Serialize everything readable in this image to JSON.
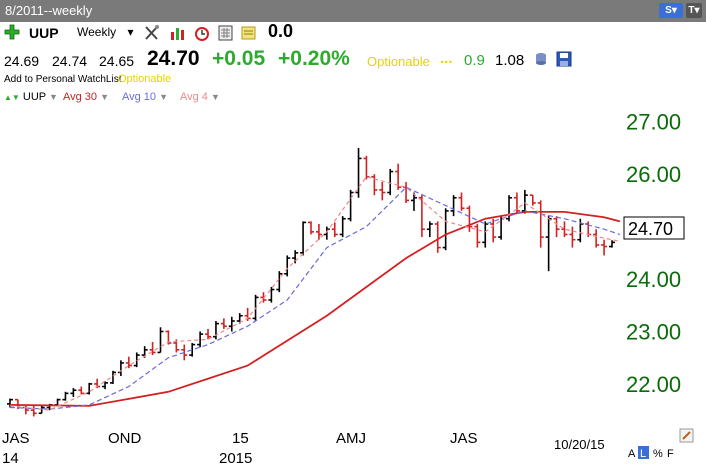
{
  "window": {
    "title": "8/2011--weekly"
  },
  "titlebar_icons": [
    {
      "icon": "s-dropdown-icon",
      "label": "S",
      "color": "#3a6fd8"
    },
    {
      "icon": "t-dropdown-icon",
      "label": "T",
      "color": "#555555"
    }
  ],
  "toolbar": {
    "symbol": "UUP",
    "period": "Weekly",
    "tools": [
      "drawing-tools-icon",
      "indicators-icon",
      "alarm-icon",
      "calculator-icon",
      "notes-icon"
    ],
    "value": "0.0"
  },
  "quote": {
    "open": "24.69",
    "high": "24.74",
    "low": "24.65",
    "last": "24.70",
    "change": "+0.05",
    "change_pct": "+0.20%",
    "optionable": "Optionable",
    "dots": "...",
    "stat1": "0.9",
    "stat2": "1.08"
  },
  "sub": {
    "add_watchlist": "Add to Personal WatchList",
    "optionable": "Optionable"
  },
  "legend": [
    {
      "label": "UUP",
      "color": "#000000"
    },
    {
      "label": "Avg 30",
      "color": "#d42020"
    },
    {
      "label": "Avg 10",
      "color": "#6a6ae0"
    },
    {
      "label": "Avg 4",
      "color": "#ee8888"
    }
  ],
  "colors": {
    "up": "#000000",
    "down": "#d42020",
    "avg30": "#d42020",
    "avg10": "#6a6ae0",
    "avg4": "#ee8888",
    "axis": "#0b6b0b"
  },
  "chart_data": {
    "type": "line",
    "ylim": [
      21.35,
      27.3
    ],
    "yticks": [
      27.0,
      26.0,
      25.0,
      24.0,
      23.0,
      22.0
    ],
    "ytick_labels": [
      "27.00",
      "26.00",
      "25.00",
      "24.00",
      "23.00",
      "22.00"
    ],
    "last_price_label": "24.70",
    "x_labels": [
      "JAS",
      "OND",
      "15",
      "AMJ",
      "JAS"
    ],
    "x_sublabels": [
      "14",
      "2015"
    ],
    "date_label": "10/20/15",
    "bars": [
      [
        21.62,
        21.72,
        21.55,
        21.7
      ],
      [
        21.7,
        21.7,
        21.52,
        21.55
      ],
      [
        21.55,
        21.58,
        21.42,
        21.5
      ],
      [
        21.5,
        21.58,
        21.38,
        21.44
      ],
      [
        21.44,
        21.6,
        21.44,
        21.55
      ],
      [
        21.55,
        21.62,
        21.5,
        21.6
      ],
      [
        21.6,
        21.72,
        21.58,
        21.7
      ],
      [
        21.7,
        21.85,
        21.68,
        21.82
      ],
      [
        21.82,
        21.92,
        21.75,
        21.88
      ],
      [
        21.88,
        21.95,
        21.8,
        21.82
      ],
      [
        21.82,
        22.02,
        21.8,
        22.0
      ],
      [
        22.0,
        22.1,
        21.92,
        21.95
      ],
      [
        21.95,
        22.05,
        21.9,
        22.02
      ],
      [
        22.02,
        22.25,
        22.0,
        22.22
      ],
      [
        22.22,
        22.45,
        22.15,
        22.4
      ],
      [
        22.4,
        22.52,
        22.3,
        22.35
      ],
      [
        22.35,
        22.6,
        22.32,
        22.55
      ],
      [
        22.55,
        22.72,
        22.5,
        22.65
      ],
      [
        22.65,
        22.8,
        22.55,
        22.6
      ],
      [
        22.6,
        23.08,
        22.6,
        23.0
      ],
      [
        23.0,
        23.02,
        22.75,
        22.78
      ],
      [
        22.78,
        22.85,
        22.6,
        22.65
      ],
      [
        22.65,
        22.75,
        22.45,
        22.55
      ],
      [
        22.55,
        22.78,
        22.52,
        22.75
      ],
      [
        22.75,
        23.0,
        22.7,
        22.95
      ],
      [
        22.95,
        23.05,
        22.85,
        22.9
      ],
      [
        22.9,
        23.2,
        22.85,
        23.15
      ],
      [
        23.15,
        23.25,
        23.05,
        23.1
      ],
      [
        23.1,
        23.28,
        23.0,
        23.2
      ],
      [
        23.2,
        23.35,
        23.15,
        23.3
      ],
      [
        23.3,
        23.45,
        23.2,
        23.25
      ],
      [
        23.25,
        23.7,
        23.2,
        23.65
      ],
      [
        23.65,
        23.75,
        23.55,
        23.6
      ],
      [
        23.6,
        23.85,
        23.55,
        23.8
      ],
      [
        23.8,
        24.15,
        23.75,
        24.1
      ],
      [
        24.1,
        24.45,
        24.05,
        24.4
      ],
      [
        24.4,
        24.55,
        24.3,
        24.5
      ],
      [
        24.5,
        25.1,
        24.45,
        25.08
      ],
      [
        25.08,
        25.1,
        24.85,
        24.9
      ],
      [
        24.9,
        25.05,
        24.75,
        24.85
      ],
      [
        24.85,
        25.0,
        24.75,
        24.95
      ],
      [
        24.95,
        25.08,
        24.8,
        24.85
      ],
      [
        24.85,
        25.2,
        24.8,
        25.15
      ],
      [
        25.15,
        25.7,
        25.1,
        25.65
      ],
      [
        25.65,
        26.5,
        25.55,
        26.3
      ],
      [
        26.3,
        26.35,
        25.9,
        25.95
      ],
      [
        25.95,
        26.0,
        25.6,
        25.7
      ],
      [
        25.7,
        25.85,
        25.5,
        25.65
      ],
      [
        25.65,
        26.1,
        25.6,
        26.05
      ],
      [
        26.05,
        26.2,
        25.7,
        25.75
      ],
      [
        25.75,
        25.85,
        25.45,
        25.5
      ],
      [
        25.5,
        25.65,
        25.3,
        25.55
      ],
      [
        25.55,
        25.6,
        24.8,
        24.95
      ],
      [
        24.95,
        25.1,
        24.8,
        25.05
      ],
      [
        25.05,
        25.1,
        24.5,
        24.6
      ],
      [
        24.6,
        25.35,
        24.55,
        25.3
      ],
      [
        25.3,
        25.6,
        25.2,
        25.55
      ],
      [
        25.55,
        25.65,
        25.3,
        25.35
      ],
      [
        25.35,
        25.4,
        24.9,
        25.0
      ],
      [
        25.0,
        25.05,
        24.6,
        24.7
      ],
      [
        24.7,
        25.1,
        24.6,
        25.05
      ],
      [
        25.05,
        25.15,
        24.7,
        24.8
      ],
      [
        24.8,
        25.2,
        24.75,
        25.15
      ],
      [
        25.15,
        25.6,
        25.1,
        25.55
      ],
      [
        25.55,
        25.65,
        25.25,
        25.3
      ],
      [
        25.3,
        25.7,
        25.25,
        25.6
      ],
      [
        25.6,
        25.6,
        25.4,
        25.45
      ],
      [
        25.45,
        25.5,
        24.6,
        24.8
      ],
      [
        24.8,
        25.2,
        24.15,
        25.15
      ],
      [
        25.15,
        25.2,
        24.8,
        24.95
      ],
      [
        24.95,
        25.1,
        24.8,
        24.85
      ],
      [
        24.85,
        25.0,
        24.6,
        24.75
      ],
      [
        24.75,
        25.15,
        24.7,
        25.05
      ],
      [
        25.05,
        25.1,
        24.8,
        24.85
      ],
      [
        24.85,
        24.95,
        24.6,
        24.65
      ],
      [
        24.65,
        24.75,
        24.45,
        24.62
      ],
      [
        24.62,
        24.74,
        24.6,
        24.7
      ]
    ],
    "series": [
      {
        "name": "Avg 30",
        "x": [
          0,
          10,
          20,
          30,
          40,
          50,
          55,
          60,
          65,
          70,
          75,
          77
        ],
        "values": [
          21.6,
          21.58,
          21.85,
          22.35,
          23.3,
          24.4,
          24.85,
          25.15,
          25.28,
          25.28,
          25.18,
          25.1
        ]
      },
      {
        "name": "Avg 10",
        "x": [
          0,
          5,
          10,
          15,
          20,
          25,
          30,
          35,
          40,
          45,
          50,
          55,
          60,
          65,
          70,
          75,
          77
        ],
        "values": [
          21.55,
          21.52,
          21.6,
          21.95,
          22.5,
          22.75,
          23.1,
          23.6,
          24.6,
          25.0,
          25.75,
          25.4,
          25.05,
          25.3,
          25.15,
          24.95,
          24.85
        ]
      },
      {
        "name": "Avg 4",
        "x": [
          0,
          5,
          10,
          15,
          20,
          25,
          30,
          35,
          40,
          45,
          50,
          55,
          60,
          65,
          70,
          75,
          77
        ],
        "values": [
          21.58,
          21.5,
          21.85,
          22.35,
          22.8,
          22.85,
          23.25,
          24.2,
          24.9,
          25.95,
          25.75,
          25.1,
          24.9,
          25.45,
          24.95,
          24.78,
          24.72
        ]
      }
    ]
  },
  "footer": {
    "scale_a": "A",
    "scale_l": "L",
    "scale_pct": "%",
    "scale_f": "F"
  }
}
